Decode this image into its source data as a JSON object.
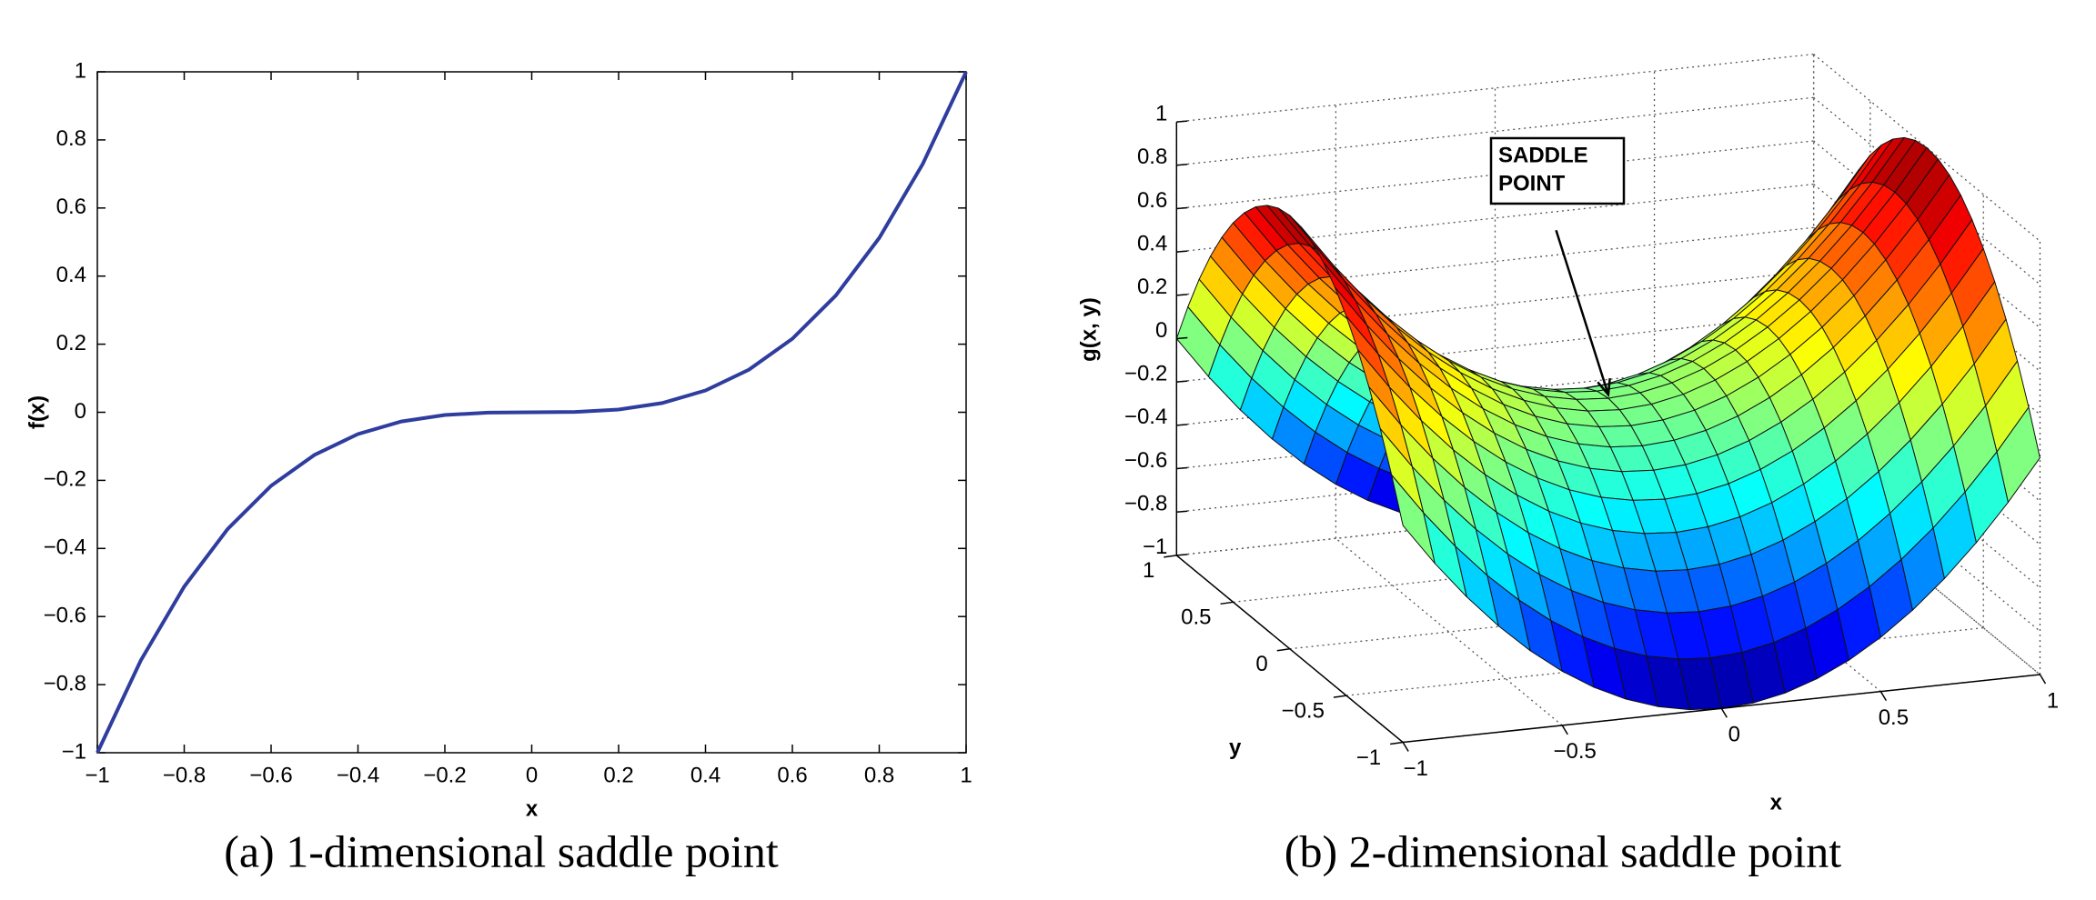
{
  "chart_data": [
    {
      "type": "line",
      "xlabel": "x",
      "ylabel": "f(x)",
      "caption": "(a) 1-dimensional saddle point",
      "color": "#2e3d9e",
      "x": [
        -1,
        -0.9,
        -0.8,
        -0.7,
        -0.6,
        -0.5,
        -0.4,
        -0.3,
        -0.2,
        -0.1,
        0,
        0.1,
        0.2,
        0.3,
        0.4,
        0.5,
        0.6,
        0.7,
        0.8,
        0.9,
        1
      ],
      "values": [
        -1,
        -0.729,
        -0.512,
        -0.343,
        -0.216,
        -0.125,
        -0.064,
        -0.027,
        -0.008,
        -0.001,
        0,
        0.001,
        0.008,
        0.027,
        0.064,
        0.125,
        0.216,
        0.343,
        0.512,
        0.729,
        1
      ],
      "xlim": [
        -1,
        1
      ],
      "ylim": [
        -1,
        1
      ],
      "xticks": [
        {
          "value": -1,
          "label": "−1"
        },
        {
          "value": -0.8,
          "label": "−0.8"
        },
        {
          "value": -0.6,
          "label": "−0.6"
        },
        {
          "value": -0.4,
          "label": "−0.4"
        },
        {
          "value": -0.2,
          "label": "−0.2"
        },
        0,
        0.2,
        0.4,
        0.6,
        0.8,
        1
      ],
      "yticks": [
        {
          "value": -1,
          "label": "−1"
        },
        {
          "value": -0.8,
          "label": "−0.8"
        },
        {
          "value": -0.6,
          "label": "−0.6"
        },
        {
          "value": -0.4,
          "label": "−0.4"
        },
        {
          "value": -0.2,
          "label": "−0.2"
        },
        0,
        0.2,
        0.4,
        0.6,
        0.8,
        1
      ]
    },
    {
      "type": "surface",
      "xlabel": "x",
      "ylabel": "y",
      "zlabel": "g(x, y)",
      "caption": "(b) 2-dimensional saddle point",
      "annotation": [
        "SADDLE",
        "POINT"
      ],
      "colormap": "jet",
      "grid": true,
      "x": [
        -1,
        -0.9,
        -0.8,
        -0.7,
        -0.6,
        -0.5,
        -0.4,
        -0.3,
        -0.2,
        -0.1,
        0,
        0.1,
        0.2,
        0.3,
        0.4,
        0.5,
        0.6,
        0.7,
        0.8,
        0.9,
        1
      ],
      "y": [
        -1,
        -0.9,
        -0.8,
        -0.7,
        -0.6,
        -0.5,
        -0.4,
        -0.3,
        -0.2,
        -0.1,
        0,
        0.1,
        0.2,
        0.3,
        0.4,
        0.5,
        0.6,
        0.7,
        0.8,
        0.9,
        1
      ],
      "z": [
        [
          0,
          -0.19,
          -0.36,
          -0.51,
          -0.64,
          -0.75,
          -0.84,
          -0.91,
          -0.96,
          -0.99,
          -1,
          -0.99,
          -0.96,
          -0.91,
          -0.84,
          -0.75,
          -0.64,
          -0.51,
          -0.36,
          -0.19,
          0
        ],
        [
          0.19,
          0,
          -0.17,
          -0.32,
          -0.45,
          -0.56,
          -0.65,
          -0.72,
          -0.77,
          -0.8,
          -0.81,
          -0.8,
          -0.77,
          -0.72,
          -0.65,
          -0.56,
          -0.45,
          -0.32,
          -0.17,
          0,
          0.19
        ],
        [
          0.36,
          0.17,
          0,
          -0.15,
          -0.28,
          -0.39,
          -0.48,
          -0.55,
          -0.6,
          -0.63,
          -0.64,
          -0.63,
          -0.6,
          -0.55,
          -0.48,
          -0.39,
          -0.28,
          -0.15,
          0,
          0.17,
          0.36
        ],
        [
          0.51,
          0.32,
          0.15,
          0,
          -0.13,
          -0.24,
          -0.33,
          -0.4,
          -0.45,
          -0.48,
          -0.49,
          -0.48,
          -0.45,
          -0.4,
          -0.33,
          -0.24,
          -0.13,
          0,
          0.15,
          0.32,
          0.51
        ],
        [
          0.64,
          0.45,
          0.28,
          0.13,
          0,
          -0.11,
          -0.2,
          -0.27,
          -0.32,
          -0.35,
          -0.36,
          -0.35,
          -0.32,
          -0.27,
          -0.2,
          -0.11,
          0,
          0.13,
          0.28,
          0.45,
          0.64
        ],
        [
          0.75,
          0.56,
          0.39,
          0.24,
          0.11,
          0,
          -0.09,
          -0.16,
          -0.21,
          -0.24,
          -0.25,
          -0.24,
          -0.21,
          -0.16,
          -0.09,
          0,
          0.11,
          0.24,
          0.39,
          0.56,
          0.75
        ],
        [
          0.84,
          0.65,
          0.48,
          0.33,
          0.2,
          0.09,
          0,
          -0.07,
          -0.12,
          -0.15,
          -0.16,
          -0.15,
          -0.12,
          -0.07,
          0,
          0.09,
          0.2,
          0.33,
          0.48,
          0.65,
          0.84
        ],
        [
          0.91,
          0.72,
          0.55,
          0.4,
          0.27,
          0.16,
          0.07,
          0,
          -0.05,
          -0.08,
          -0.09,
          -0.08,
          -0.05,
          0,
          0.07,
          0.16,
          0.27,
          0.4,
          0.55,
          0.72,
          0.91
        ],
        [
          0.96,
          0.77,
          0.6,
          0.45,
          0.32,
          0.21,
          0.12,
          0.05,
          0,
          -0.03,
          -0.04,
          -0.03,
          0,
          0.05,
          0.12,
          0.21,
          0.32,
          0.45,
          0.6,
          0.77,
          0.96
        ],
        [
          0.99,
          0.8,
          0.63,
          0.48,
          0.35,
          0.24,
          0.15,
          0.08,
          0.03,
          0,
          -0.01,
          0,
          0.03,
          0.08,
          0.15,
          0.24,
          0.35,
          0.48,
          0.63,
          0.8,
          0.99
        ],
        [
          1,
          0.81,
          0.64,
          0.49,
          0.36,
          0.25,
          0.16,
          0.09,
          0.04,
          0.01,
          0,
          0.01,
          0.04,
          0.09,
          0.16,
          0.25,
          0.36,
          0.49,
          0.64,
          0.81,
          1
        ],
        [
          0.99,
          0.8,
          0.63,
          0.48,
          0.35,
          0.24,
          0.15,
          0.08,
          0.03,
          0,
          -0.01,
          0,
          0.03,
          0.08,
          0.15,
          0.24,
          0.35,
          0.48,
          0.63,
          0.8,
          0.99
        ],
        [
          0.96,
          0.77,
          0.6,
          0.45,
          0.32,
          0.21,
          0.12,
          0.05,
          0,
          -0.03,
          -0.04,
          -0.03,
          0,
          0.05,
          0.12,
          0.21,
          0.32,
          0.45,
          0.6,
          0.77,
          0.96
        ],
        [
          0.91,
          0.72,
          0.55,
          0.4,
          0.27,
          0.16,
          0.07,
          0,
          -0.05,
          -0.08,
          -0.09,
          -0.08,
          -0.05,
          0,
          0.07,
          0.16,
          0.27,
          0.4,
          0.55,
          0.72,
          0.91
        ],
        [
          0.84,
          0.65,
          0.48,
          0.33,
          0.2,
          0.09,
          0,
          -0.07,
          -0.12,
          -0.15,
          -0.16,
          -0.15,
          -0.12,
          -0.07,
          0,
          0.09,
          0.2,
          0.33,
          0.48,
          0.65,
          0.84
        ],
        [
          0.75,
          0.56,
          0.39,
          0.24,
          0.11,
          0,
          -0.09,
          -0.16,
          -0.21,
          -0.24,
          -0.25,
          -0.24,
          -0.21,
          -0.16,
          -0.09,
          0,
          0.11,
          0.24,
          0.39,
          0.56,
          0.75
        ],
        [
          0.64,
          0.45,
          0.28,
          0.13,
          0,
          -0.11,
          -0.2,
          -0.27,
          -0.32,
          -0.35,
          -0.36,
          -0.35,
          -0.32,
          -0.27,
          -0.2,
          -0.11,
          0,
          0.13,
          0.28,
          0.45,
          0.64
        ],
        [
          0.51,
          0.32,
          0.15,
          0,
          -0.13,
          -0.24,
          -0.33,
          -0.4,
          -0.45,
          -0.48,
          -0.49,
          -0.48,
          -0.45,
          -0.4,
          -0.33,
          -0.24,
          -0.13,
          0,
          0.15,
          0.32,
          0.51
        ],
        [
          0.36,
          0.17,
          0,
          -0.15,
          -0.28,
          -0.39,
          -0.48,
          -0.55,
          -0.6,
          -0.63,
          -0.64,
          -0.63,
          -0.6,
          -0.55,
          -0.48,
          -0.39,
          -0.28,
          -0.15,
          0,
          0.17,
          0.36
        ],
        [
          0.19,
          0,
          -0.17,
          -0.32,
          -0.45,
          -0.56,
          -0.65,
          -0.72,
          -0.77,
          -0.8,
          -0.81,
          -0.8,
          -0.77,
          -0.72,
          -0.65,
          -0.56,
          -0.45,
          -0.32,
          -0.17,
          0,
          0.19
        ],
        [
          0,
          -0.19,
          -0.36,
          -0.51,
          -0.64,
          -0.75,
          -0.84,
          -0.91,
          -0.96,
          -0.99,
          -1,
          -0.99,
          -0.96,
          -0.91,
          -0.84,
          -0.75,
          -0.64,
          -0.51,
          -0.36,
          -0.19,
          0
        ]
      ],
      "xlim": [
        -1,
        1
      ],
      "ylim": [
        -1,
        1
      ],
      "zlim": [
        -1,
        1
      ],
      "xticks": [
        {
          "value": -1,
          "label": "−1"
        },
        {
          "value": -0.5,
          "label": "−0.5"
        },
        0,
        0.5,
        1
      ],
      "yticks": [
        {
          "value": -1,
          "label": "−1"
        },
        {
          "value": -0.5,
          "label": "−0.5"
        },
        0,
        0.5,
        1
      ],
      "zticks": [
        {
          "value": -1,
          "label": "−1"
        },
        {
          "value": -0.8,
          "label": "−0.8"
        },
        {
          "value": -0.6,
          "label": "−0.6"
        },
        {
          "value": -0.4,
          "label": "−0.4"
        },
        {
          "value": -0.2,
          "label": "−0.2"
        },
        0,
        0.2,
        0.4,
        0.6,
        0.8,
        1
      ]
    }
  ]
}
